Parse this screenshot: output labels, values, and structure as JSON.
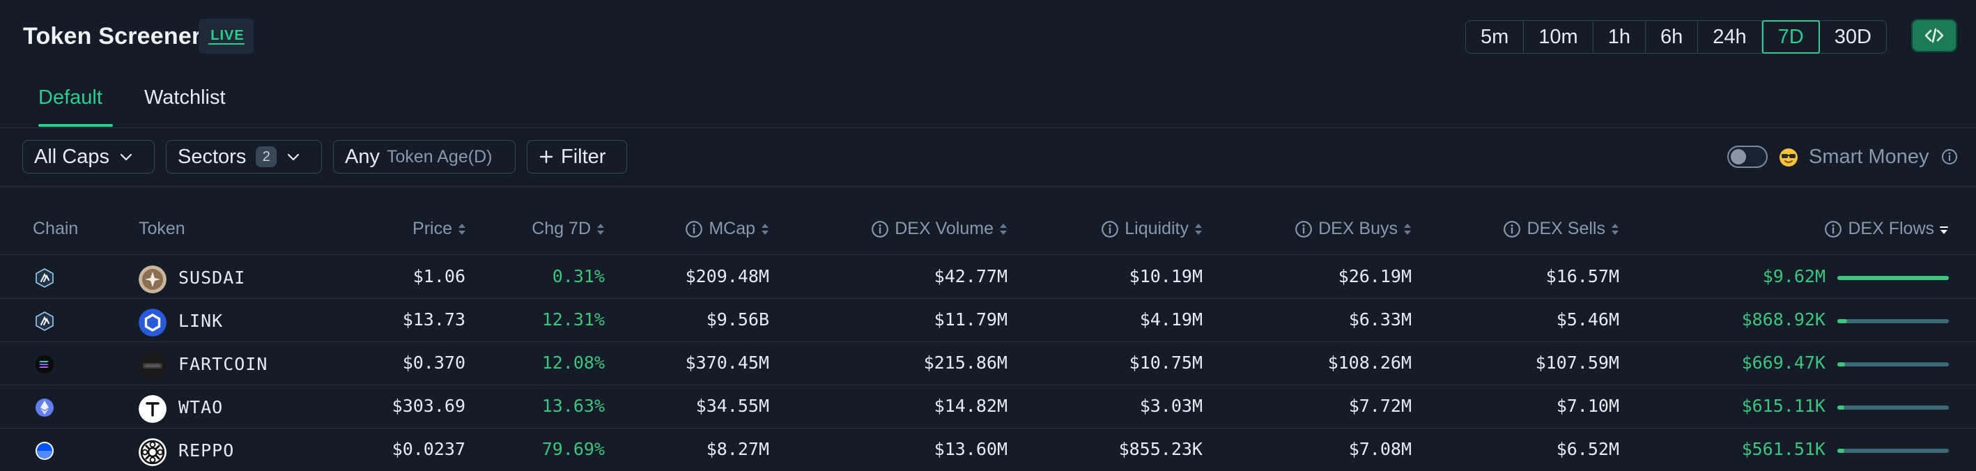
{
  "header": {
    "title": "Token Screener",
    "live_badge": "LIVE",
    "timeframes": [
      "5m",
      "10m",
      "1h",
      "6h",
      "24h",
      "7D",
      "30D"
    ],
    "active_timeframe": "7D",
    "code_icon": "code-icon"
  },
  "tabs": [
    {
      "label": "Default",
      "active": true
    },
    {
      "label": "Watchlist",
      "active": false
    }
  ],
  "filters": {
    "caps": "All Caps",
    "sectors": "Sectors",
    "sectors_count": "2",
    "token_age_value": "Any",
    "token_age_label": "Token Age(D)",
    "filter": "Filter",
    "smart_money": "Smart Money",
    "smart_money_enabled": false
  },
  "columns": {
    "chain": "Chain",
    "token": "Token",
    "price": "Price",
    "chg": "Chg 7D",
    "mcap": "MCap",
    "dex_volume": "DEX Volume",
    "liquidity": "Liquidity",
    "dex_buys": "DEX Buys",
    "dex_sells": "DEX Sells",
    "dex_flows": "DEX Flows"
  },
  "rows": [
    {
      "chain": "arbitrum",
      "token": "SUSDAI",
      "price": "$1.06",
      "chg": "0.31%",
      "mcap": "$209.48M",
      "volume": "$42.77M",
      "liquidity": "$10.19M",
      "buys": "$26.19M",
      "sells": "$16.57M",
      "flows": "$9.62M",
      "flow_fraction": 1.0
    },
    {
      "chain": "arbitrum",
      "token": "LINK",
      "price": "$13.73",
      "chg": "12.31%",
      "mcap": "$9.56B",
      "volume": "$11.79M",
      "liquidity": "$4.19M",
      "buys": "$6.33M",
      "sells": "$5.46M",
      "flows": "$868.92K",
      "flow_fraction": 0.09
    },
    {
      "chain": "solana",
      "token": "FARTCOIN",
      "price": "$0.370",
      "chg": "12.08%",
      "mcap": "$370.45M",
      "volume": "$215.86M",
      "liquidity": "$10.75M",
      "buys": "$108.26M",
      "sells": "$107.59M",
      "flows": "$669.47K",
      "flow_fraction": 0.07
    },
    {
      "chain": "ethereum",
      "token": "WTAO",
      "price": "$303.69",
      "chg": "13.63%",
      "mcap": "$34.55M",
      "volume": "$14.82M",
      "liquidity": "$3.03M",
      "buys": "$7.72M",
      "sells": "$7.10M",
      "flows": "$615.11K",
      "flow_fraction": 0.065
    },
    {
      "chain": "base",
      "token": "REPPO",
      "price": "$0.0237",
      "chg": "79.69%",
      "mcap": "$8.27M",
      "volume": "$13.60M",
      "liquidity": "$855.23K",
      "buys": "$7.08M",
      "sells": "$6.52M",
      "flows": "$561.51K",
      "flow_fraction": 0.06
    }
  ],
  "colors": {
    "accent": "#2ecc8f",
    "positive": "#3fc47e",
    "background": "#131c27"
  }
}
